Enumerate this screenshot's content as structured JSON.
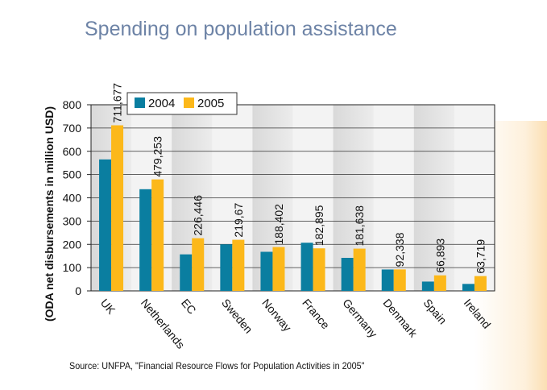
{
  "title": "Spending on population assistance",
  "source": "Source: UNFPA, \"Financial Resource Flows for Population Activities in 2005\"",
  "colors": {
    "s2004": "#0a7ea0",
    "s2005": "#fcb81a",
    "title": "#6d83a6"
  },
  "chart_data": {
    "type": "bar",
    "title": "Spending on population assistance",
    "xlabel": "",
    "ylabel": "(ODA net disbursements in million USD)",
    "ylim": [
      0,
      800
    ],
    "yticks": [
      0,
      100,
      200,
      300,
      400,
      500,
      600,
      700,
      800
    ],
    "grid": true,
    "legend": "top-left",
    "categories": [
      "UK",
      "Netherlands",
      "EC",
      "Sweden",
      "Norway",
      "France",
      "Germany",
      "Denmark",
      "Spain",
      "Ireland"
    ],
    "series": [
      {
        "name": "2004",
        "values": [
          565,
          437,
          157,
          200,
          168,
          207,
          142,
          92,
          40,
          30
        ]
      },
      {
        "name": "2005",
        "values": [
          711.677,
          479.253,
          226.446,
          219.67,
          188.402,
          182.895,
          181.638,
          92.338,
          66.893,
          63.719
        ]
      }
    ],
    "data_labels": [
      "711,677",
      "479,253",
      "226,446",
      "219,67",
      "188,402",
      "182,895",
      "181,638",
      "92,338",
      "66,893",
      "63,719"
    ]
  }
}
